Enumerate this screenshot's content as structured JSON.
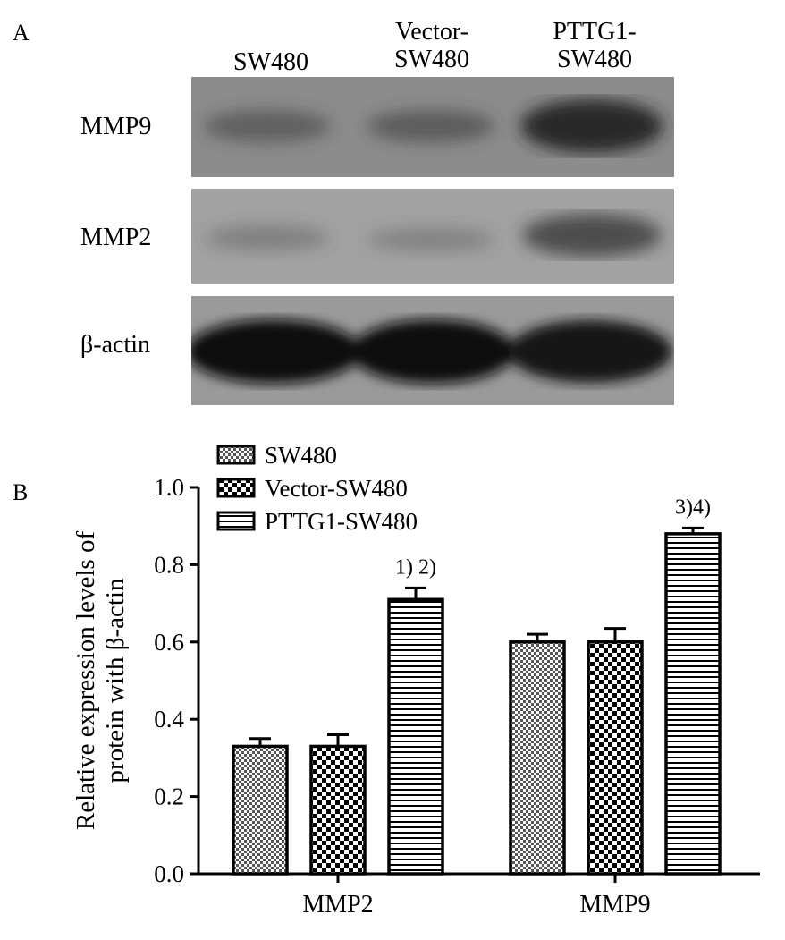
{
  "figure": {
    "panel_a_label": "A",
    "panel_b_label": "B",
    "lanes": [
      "SW480",
      "Vector-\nSW480",
      "PTTG1-\nSW480"
    ],
    "blot_rows": [
      {
        "label": "MMP9",
        "band_intensity": [
          0.55,
          0.58,
          0.95
        ]
      },
      {
        "label": "MMP2",
        "band_intensity": [
          0.4,
          0.36,
          0.78
        ]
      },
      {
        "label": "β-actin",
        "band_intensity": [
          1.0,
          1.0,
          1.0
        ]
      }
    ]
  },
  "chart_data": {
    "type": "bar",
    "categories": [
      "MMP2",
      "MMP9"
    ],
    "ylabel": "Relative expression levels of\nprotein with β-actin",
    "ylim": [
      0,
      1.0
    ],
    "yticks": [
      "0.0",
      "0.2",
      "0.4",
      "0.6",
      "0.8",
      "1.0"
    ],
    "legend_position": "top-left",
    "series": [
      {
        "name": "SW480",
        "values": [
          0.33,
          0.6
        ],
        "errors": [
          0.02,
          0.02
        ]
      },
      {
        "name": "Vector-SW480",
        "values": [
          0.33,
          0.6
        ],
        "errors": [
          0.03,
          0.035
        ]
      },
      {
        "name": "PTTG1-SW480",
        "values": [
          0.71,
          0.88
        ],
        "errors": [
          0.03,
          0.015
        ]
      }
    ],
    "annotations": [
      {
        "category": "MMP2",
        "series": "PTTG1-SW480",
        "text": "1) 2)"
      },
      {
        "category": "MMP9",
        "series": "PTTG1-SW480",
        "text": "3)4)"
      }
    ]
  }
}
